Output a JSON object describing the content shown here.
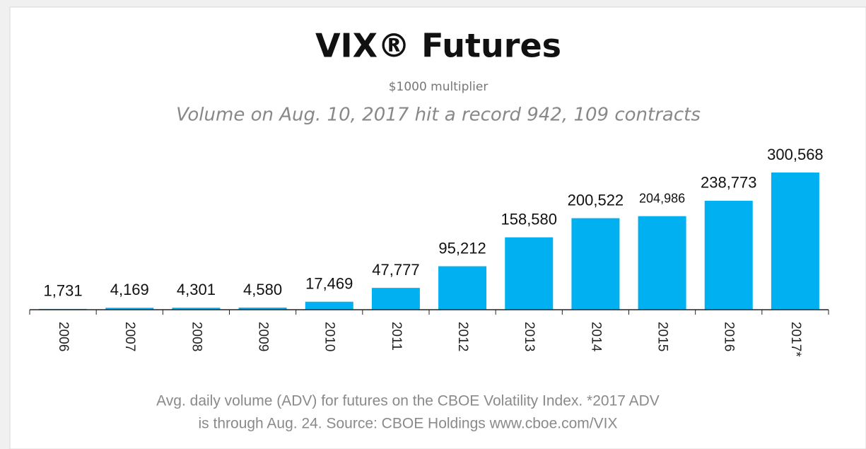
{
  "chart_data": {
    "type": "bar",
    "title": "VIX® Futures",
    "subtitle": "$1000 multiplier",
    "annotation": "Volume on Aug. 10, 2017 hit a record 942, 109 contracts",
    "categories": [
      "2006",
      "2007",
      "2008",
      "2009",
      "2010",
      "2011",
      "2012",
      "2013",
      "2014",
      "2015",
      "2016",
      "2017*"
    ],
    "values": [
      1731,
      4169,
      4301,
      4580,
      17469,
      47777,
      95212,
      158580,
      200522,
      204986,
      238773,
      300568
    ],
    "value_labels": [
      "1,731",
      "4,169",
      "4,301",
      "4,580",
      "17,469",
      "47,777",
      "95,212",
      "158,580",
      "200,522",
      "204,986",
      "238,773",
      "300,568"
    ],
    "color": "#00b0f0",
    "footnote": [
      "Avg. daily volume (ADV) for futures on the CBOE Volatility Index. *2017 ADV",
      "is through Aug. 24.  Source: CBOE Holdings    www.cboe.com/VIX"
    ]
  }
}
